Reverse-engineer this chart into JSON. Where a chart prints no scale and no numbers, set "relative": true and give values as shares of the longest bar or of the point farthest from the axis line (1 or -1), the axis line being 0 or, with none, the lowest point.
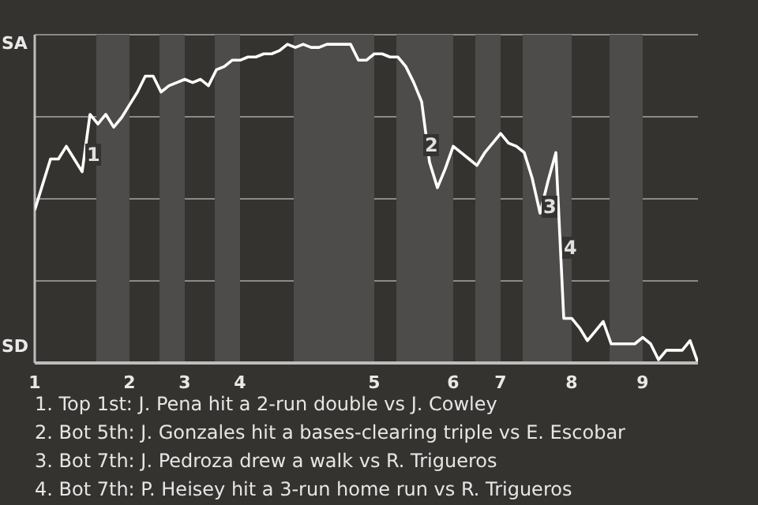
{
  "chart_data": {
    "type": "line",
    "relative": true,
    "categories": [
      "1",
      null,
      null,
      null,
      null,
      null,
      null,
      null,
      null,
      null,
      null,
      null,
      "2",
      null,
      null,
      null,
      null,
      null,
      null,
      "3",
      null,
      null,
      null,
      null,
      null,
      null,
      "4",
      null,
      null,
      null,
      null,
      null,
      null,
      null,
      null,
      null,
      null,
      null,
      null,
      null,
      null,
      null,
      null,
      "5",
      null,
      null,
      null,
      null,
      null,
      null,
      null,
      null,
      null,
      "6",
      null,
      null,
      null,
      null,
      null,
      "7",
      null,
      null,
      null,
      null,
      null,
      null,
      null,
      null,
      "8",
      null,
      null,
      null,
      null,
      null,
      null,
      null,
      null,
      "9",
      null,
      null,
      null,
      null,
      null,
      null,
      null
    ],
    "series": [
      {
        "color": "#ffffff",
        "values": [
          0.48,
          0.56,
          0.64,
          0.64,
          0.68,
          0.64,
          0.6,
          0.78,
          0.75,
          0.78,
          0.74,
          0.77,
          0.81,
          0.85,
          0.9,
          0.9,
          0.85,
          0.87,
          0.88,
          0.89,
          0.88,
          0.89,
          0.87,
          0.92,
          0.93,
          0.95,
          0.95,
          0.96,
          0.96,
          0.97,
          0.97,
          0.98,
          1,
          0.99,
          1,
          0.99,
          0.99,
          1,
          1,
          1,
          1,
          0.95,
          0.95,
          0.97,
          0.97,
          0.96,
          0.96,
          0.93,
          0.88,
          0.82,
          0.63,
          0.55,
          0.61,
          0.68,
          0.66,
          0.64,
          0.62,
          0.66,
          0.69,
          0.72,
          0.69,
          0.68,
          0.66,
          0.58,
          0.47,
          0.57,
          0.66,
          0.14,
          0.14,
          0.11,
          0.07,
          0.1,
          0.13,
          0.06,
          0.06,
          0.06,
          0.06,
          0.08,
          0.06,
          0.01,
          0.04,
          0.04,
          0.04,
          0.07,
          0
        ]
      }
    ],
    "grid": "y",
    "marker": "none",
    "line_style": "solid",
    "annotations": [
      "SA",
      "SD",
      "1",
      "2",
      "3",
      "4",
      "1. Top 1st: J. Pena hit a 2-run double vs J. Cowley",
      "2. Bot 5th: J. Gonzales hit a bases-clearing triple vs E. Escobar",
      "3. Bot 7th: J. Pedroza drew a walk vs R. Trigueros",
      "4. Bot 7th: P. Heisey hit a 3-run home run vs R. Trigueros"
    ]
  }
}
